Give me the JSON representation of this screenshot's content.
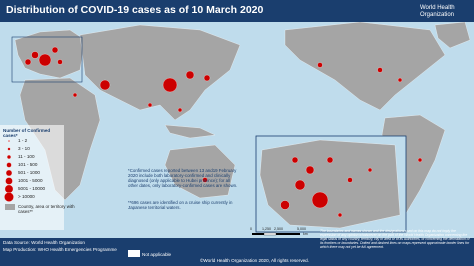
{
  "header": {
    "title": "Distribution of COVID-19 cases as of 10 March 2020",
    "organization": "World Health Organization"
  },
  "legend": {
    "title": "Number of Confirmed cases*",
    "items": [
      "1 - 2",
      "3 - 10",
      "11 - 100",
      "101 - 500",
      "501 - 1000",
      "1001 - 5000",
      "5001 - 10000",
      "> 10000"
    ],
    "country_label": "Country, area or territory with cases**",
    "not_applicable": "Not applicable"
  },
  "notes": [
    "*Confirmed cases reported between 13 and19 February 2020 include both laboratory-confirmed and clinically diagnosed (only applicable to Hubei province); for all other dates, only laboratory-confirmed cases are shown.",
    "**696 cases are identified on a cruise ship currently in Japanese territorial waters."
  ],
  "scale_bar": {
    "labels": [
      "0",
      "1,250",
      "2,500",
      "5,000"
    ],
    "unit": "km"
  },
  "footer": {
    "data_source": "Data Source: World Health Organization",
    "map_production": "Map Production: WHO Health Emergencies Programme",
    "copyright": "©World Health Organization 2020, All rights reserved.",
    "disclaimer": "The boundaries and names shown and the designations used on this map do not imply the expression of any opinion whatsoever on the part of the World Health Organization concerning the legal status of any country, territory, city or area or of its authorities, or concerning the delimitation of its frontiers or boundaries. Dotted and dashed lines on maps represent approximate border lines for which there may not yet be full agreement."
  }
}
